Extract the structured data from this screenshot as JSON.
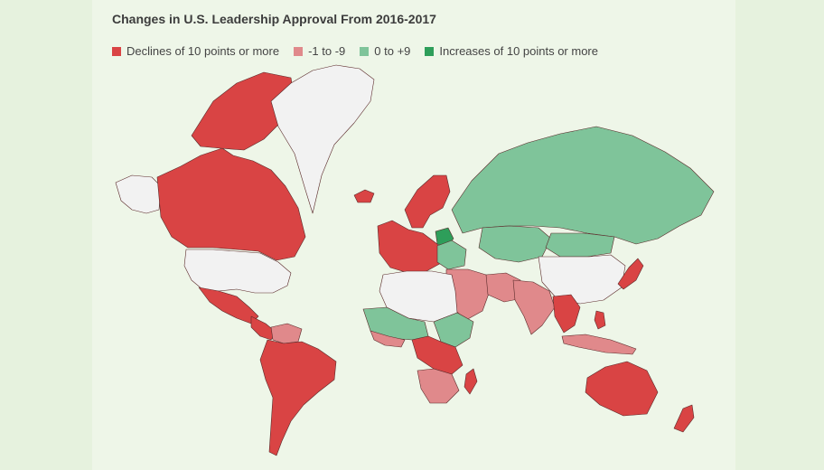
{
  "title": "Changes in U.S. Leadership Approval From 2016-2017",
  "legend": [
    {
      "key": "decline10",
      "label": "Declines of 10 points or more",
      "color": "#d94444"
    },
    {
      "key": "decline_small",
      "label": "-1 to -9",
      "color": "#e0898b"
    },
    {
      "key": "gain_small",
      "label": "0 to +9",
      "color": "#7fc49a"
    },
    {
      "key": "gain10",
      "label": "Increases of 10 points or more",
      "color": "#2e9e5a"
    }
  ],
  "colors": {
    "no_data": "#f2f2f2",
    "background": "#e6f2de",
    "panel": "#eef6e8",
    "border": "#5a2a2a"
  },
  "regions": [
    {
      "name": "canada",
      "category": "decline10"
    },
    {
      "name": "alaska",
      "category": "no_data"
    },
    {
      "name": "usa",
      "category": "no_data"
    },
    {
      "name": "greenland",
      "category": "no_data"
    },
    {
      "name": "iceland",
      "category": "decline10"
    },
    {
      "name": "mexico",
      "category": "decline10"
    },
    {
      "name": "central-america",
      "category": "decline10"
    },
    {
      "name": "south-america",
      "category": "decline10"
    },
    {
      "name": "south-america-north",
      "category": "decline_small"
    },
    {
      "name": "scandinavia",
      "category": "decline10"
    },
    {
      "name": "western-europe",
      "category": "decline10"
    },
    {
      "name": "belarus",
      "category": "gain10"
    },
    {
      "name": "eastern-europe",
      "category": "gain_small"
    },
    {
      "name": "russia",
      "category": "gain_small"
    },
    {
      "name": "central-asia",
      "category": "gain_small"
    },
    {
      "name": "china",
      "category": "no_data"
    },
    {
      "name": "mongolia",
      "category": "gain_small"
    },
    {
      "name": "middle-east",
      "category": "decline_small"
    },
    {
      "name": "iran",
      "category": "decline_small"
    },
    {
      "name": "south-asia",
      "category": "decline_small"
    },
    {
      "name": "southeast-asia",
      "category": "decline10"
    },
    {
      "name": "japan",
      "category": "decline10"
    },
    {
      "name": "north-africa",
      "category": "no_data"
    },
    {
      "name": "west-africa",
      "category": "gain_small"
    },
    {
      "name": "west-africa-coast",
      "category": "decline_small"
    },
    {
      "name": "central-africa",
      "category": "decline10"
    },
    {
      "name": "east-africa",
      "category": "gain_small"
    },
    {
      "name": "southern-africa",
      "category": "decline_small"
    },
    {
      "name": "madagascar",
      "category": "decline10"
    },
    {
      "name": "indonesia",
      "category": "decline_small"
    },
    {
      "name": "australia",
      "category": "decline10"
    },
    {
      "name": "new-zealand",
      "category": "decline10"
    },
    {
      "name": "philippines",
      "category": "decline10"
    }
  ]
}
